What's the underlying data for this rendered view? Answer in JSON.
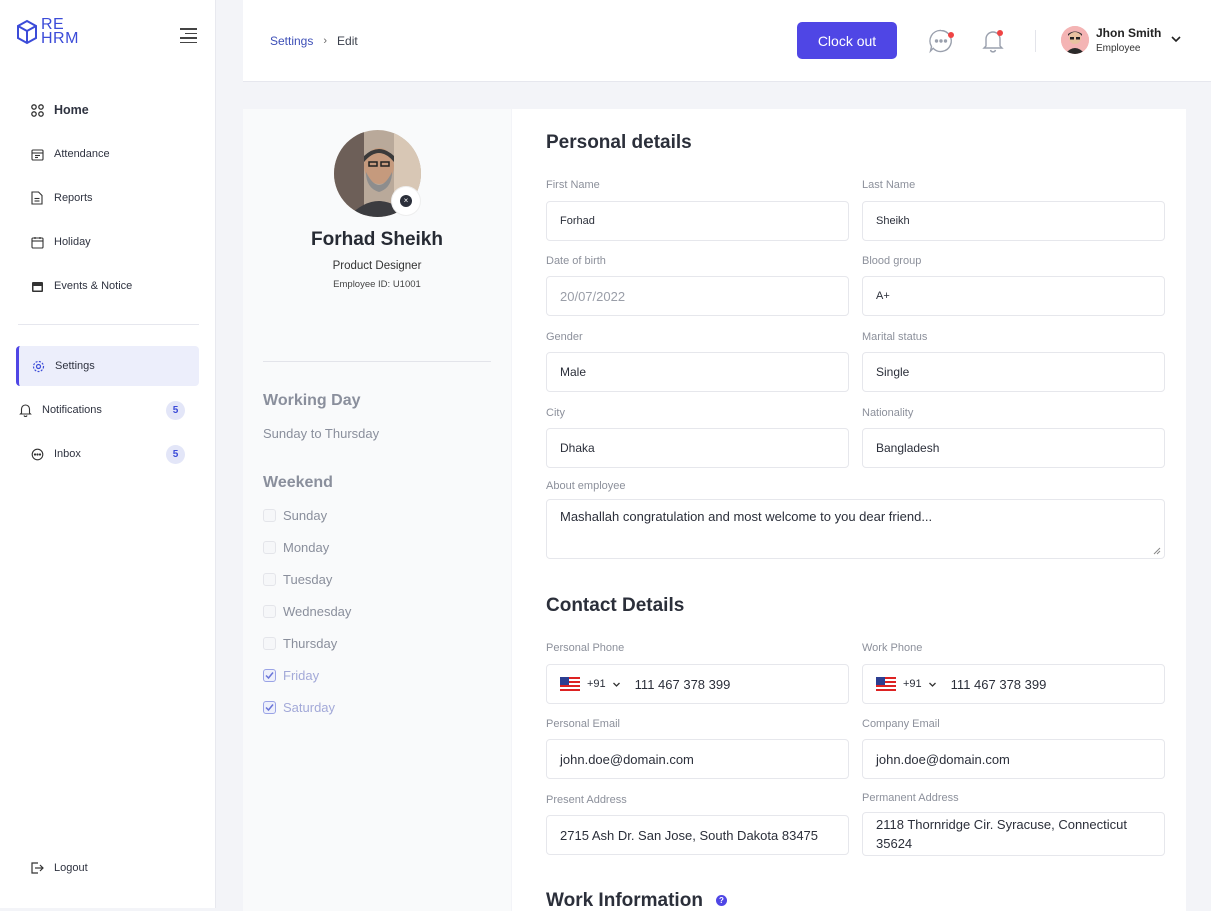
{
  "app": {
    "logo_text_line1": "RE",
    "logo_text_line2": "HRM"
  },
  "sidebar": {
    "items": [
      {
        "label": "Home",
        "icon": "grid-icon"
      },
      {
        "label": "Attendance",
        "icon": "calendar-check-icon"
      },
      {
        "label": "Reports",
        "icon": "document-icon"
      },
      {
        "label": "Holiday",
        "icon": "calendar-icon"
      },
      {
        "label": "Events & Notice",
        "icon": "calendar-filled-icon"
      },
      {
        "label": "Settings",
        "icon": "gear-icon"
      },
      {
        "label": "Notifications",
        "icon": "bell-icon",
        "badge": "5"
      },
      {
        "label": "Inbox",
        "icon": "chat-icon",
        "badge": "5"
      }
    ],
    "logout": "Logout"
  },
  "header": {
    "breadcrumb": [
      "Settings",
      "Edit"
    ],
    "clock_out": "Clock out",
    "user": {
      "name": "Jhon Smith",
      "role": "Employee"
    },
    "accent": "#4f46e5"
  },
  "profile": {
    "name": "Forhad Sheikh",
    "role": "Product Designer",
    "employee_id": "Employee ID: U1001",
    "working_day_title": "Working Day",
    "working_day_value": "Sunday to Thursday",
    "weekend_title": "Weekend",
    "weekend_days": [
      {
        "label": "Sunday",
        "checked": false
      },
      {
        "label": "Monday",
        "checked": false
      },
      {
        "label": "Tuesday",
        "checked": false
      },
      {
        "label": "Wednesday",
        "checked": false
      },
      {
        "label": "Thursday",
        "checked": false
      },
      {
        "label": "Friday",
        "checked": true
      },
      {
        "label": "Saturday",
        "checked": true
      }
    ]
  },
  "personal": {
    "title": "Personal details",
    "first_name_label": "First Name",
    "first_name": "Forhad",
    "last_name_label": "Last Name",
    "last_name": "Sheikh",
    "dob_label": "Date of birth",
    "dob": "20/07/2022",
    "blood_label": "Blood group",
    "blood": "A+",
    "gender_label": "Gender",
    "gender": "Male",
    "marital_label": "Marital status",
    "marital": "Single",
    "city_label": "City",
    "city": "Dhaka",
    "nationality_label": "Nationality",
    "nationality": "Bangladesh",
    "about_label": "About employee",
    "about": "Mashallah congratulation and most welcome to you dear friend..."
  },
  "contact": {
    "title": "Contact Details",
    "personal_phone_label": "Personal Phone",
    "work_phone_label": "Work Phone",
    "country_code": "+91",
    "personal_phone": "111 467 378 399",
    "work_phone": "111 467 378 399",
    "personal_email_label": "Personal Email",
    "personal_email": "john.doe@domain.com",
    "company_email_label": "Company Email",
    "company_email": "john.doe@domain.com",
    "present_address_label": "Present Address",
    "present_address": "2715 Ash Dr. San Jose, South Dakota 83475",
    "permanent_address_label": "Permanent Address",
    "permanent_address_line1": "2118 Thornridge Cir. Syracuse, Connecticut",
    "permanent_address_line2": "35624"
  },
  "work": {
    "title": "Work Information",
    "help": "?"
  }
}
